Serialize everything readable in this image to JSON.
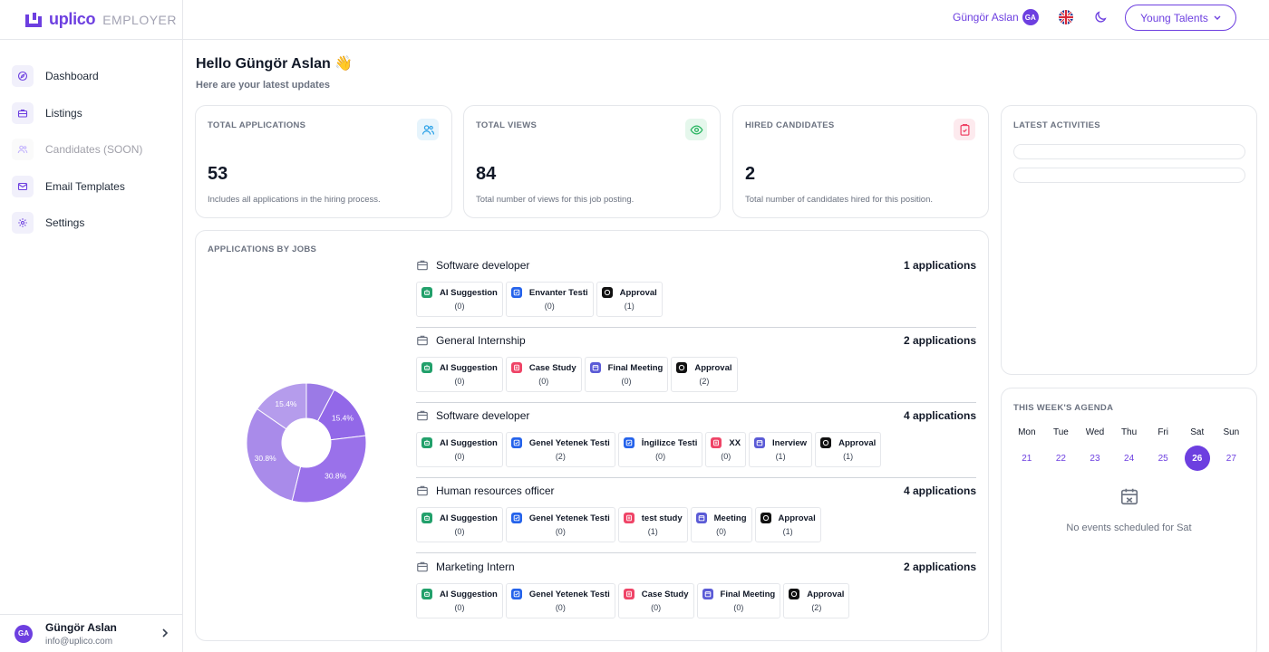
{
  "brand": {
    "name": "uplico",
    "suffix": "EMPLOYER"
  },
  "colors": {
    "accent": "#6d3fe0",
    "border": "#e5e7eb",
    "muted": "#6b7280"
  },
  "sidebar": {
    "items": [
      {
        "label": "Dashboard",
        "icon": "compass-icon"
      },
      {
        "label": "Listings",
        "icon": "briefcase-icon"
      },
      {
        "label": "Candidates (SOON)",
        "icon": "users-icon"
      },
      {
        "label": "Email Templates",
        "icon": "mail-icon"
      },
      {
        "label": "Settings",
        "icon": "gear-icon"
      }
    ],
    "user": {
      "initials": "GA",
      "name": "Güngör Aslan",
      "email": "info@uplico.com"
    }
  },
  "header": {
    "user_name": "Güngör Aslan",
    "user_initials": "GA",
    "company": "Young Talents"
  },
  "main": {
    "greeting": "Hello Güngör Aslan 👋",
    "subtitle": "Here are your latest updates",
    "stats": [
      {
        "label": "TOTAL APPLICATIONS",
        "value": "53",
        "desc": "Includes all applications in the hiring process.",
        "icon": "users-icon",
        "color": "#2ea3e8"
      },
      {
        "label": "TOTAL VIEWS",
        "value": "84",
        "desc": "Total number of views for this job posting.",
        "icon": "eye-icon",
        "color": "#22b35c"
      },
      {
        "label": "HIRED CANDIDATES",
        "value": "2",
        "desc": "Total number of candidates hired for this position.",
        "icon": "clipboard-check-icon",
        "color": "#ef4467"
      }
    ],
    "jobs_card": {
      "label": "APPLICATIONS BY JOBS",
      "jobs": [
        {
          "title": "Software developer",
          "count": "1 applications",
          "stages": [
            {
              "name": "AI Suggestion",
              "count": "(0)",
              "kind": "ai"
            },
            {
              "name": "Envanter Testi",
              "count": "(0)",
              "kind": "test"
            },
            {
              "name": "Approval",
              "count": "(1)",
              "kind": "approval"
            }
          ]
        },
        {
          "title": "General Internship",
          "count": "2 applications",
          "stages": [
            {
              "name": "AI Suggestion",
              "count": "(0)",
              "kind": "ai"
            },
            {
              "name": "Case Study",
              "count": "(0)",
              "kind": "case"
            },
            {
              "name": "Final Meeting",
              "count": "(0)",
              "kind": "meeting"
            },
            {
              "name": "Approval",
              "count": "(2)",
              "kind": "approval"
            }
          ]
        },
        {
          "title": "Software developer",
          "count": "4 applications",
          "stages": [
            {
              "name": "AI Suggestion",
              "count": "(0)",
              "kind": "ai"
            },
            {
              "name": "Genel Yetenek Testi",
              "count": "(2)",
              "kind": "test"
            },
            {
              "name": "İngilizce Testi",
              "count": "(0)",
              "kind": "test"
            },
            {
              "name": "XX",
              "count": "(0)",
              "kind": "case"
            },
            {
              "name": "Inerview",
              "count": "(1)",
              "kind": "meeting"
            },
            {
              "name": "Approval",
              "count": "(1)",
              "kind": "approval"
            }
          ]
        },
        {
          "title": "Human resources officer",
          "count": "4 applications",
          "stages": [
            {
              "name": "AI Suggestion",
              "count": "(0)",
              "kind": "ai"
            },
            {
              "name": "Genel Yetenek Testi",
              "count": "(0)",
              "kind": "test"
            },
            {
              "name": "test study",
              "count": "(1)",
              "kind": "case"
            },
            {
              "name": "Meeting",
              "count": "(0)",
              "kind": "meeting"
            },
            {
              "name": "Approval",
              "count": "(1)",
              "kind": "approval"
            }
          ]
        },
        {
          "title": "Marketing Intern",
          "count": "2 applications",
          "stages": [
            {
              "name": "AI Suggestion",
              "count": "(0)",
              "kind": "ai"
            },
            {
              "name": "Genel Yetenek Testi",
              "count": "(0)",
              "kind": "test"
            },
            {
              "name": "Case Study",
              "count": "(0)",
              "kind": "case"
            },
            {
              "name": "Final Meeting",
              "count": "(0)",
              "kind": "meeting"
            },
            {
              "name": "Approval",
              "count": "(2)",
              "kind": "approval"
            }
          ]
        }
      ],
      "donut": {
        "slices": [
          {
            "value": 7.7,
            "label": "",
            "color": "#9b7ae6"
          },
          {
            "value": 15.4,
            "label": "15.4%",
            "color": "#9268e8"
          },
          {
            "value": 30.8,
            "label": "30.8%",
            "color": "#9a71ea"
          },
          {
            "value": 30.8,
            "label": "30.8%",
            "color": "#a98bea"
          },
          {
            "value": 15.4,
            "label": "15.4%",
            "color": "#b59cec"
          }
        ]
      }
    },
    "activities": {
      "label": "LATEST ACTIVITIES"
    },
    "agenda": {
      "label": "THIS WEEK'S AGENDA",
      "days": [
        {
          "name": "Mon",
          "num": "21"
        },
        {
          "name": "Tue",
          "num": "22"
        },
        {
          "name": "Wed",
          "num": "23"
        },
        {
          "name": "Thu",
          "num": "24"
        },
        {
          "name": "Fri",
          "num": "25"
        },
        {
          "name": "Sat",
          "num": "26",
          "active": true
        },
        {
          "name": "Sun",
          "num": "27"
        }
      ],
      "empty_text": "No events scheduled for Sat"
    }
  }
}
